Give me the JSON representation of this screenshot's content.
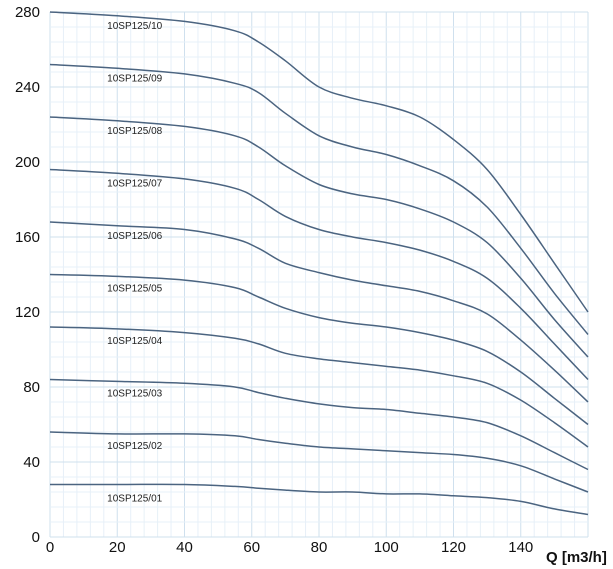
{
  "chart_data": {
    "type": "line",
    "title": "",
    "xlabel": "Q  [m3/h]",
    "ylabel": "",
    "xlim": [
      0,
      160
    ],
    "ylim": [
      0,
      280
    ],
    "grid": true,
    "x_ticks": [
      0,
      20,
      40,
      60,
      80,
      100,
      120,
      140
    ],
    "x_tick_labels": [
      "0",
      "20",
      "40",
      "60",
      "80",
      "100",
      "120",
      "140"
    ],
    "y_ticks": [
      0,
      40,
      80,
      120,
      160,
      200,
      240,
      280
    ],
    "y_tick_labels": [
      "0",
      "40",
      "80",
      "120",
      "160",
      "200",
      "240",
      "280"
    ],
    "x": [
      0,
      20,
      40,
      55,
      62,
      70,
      80,
      90,
      100,
      110,
      120,
      130,
      140,
      150,
      160
    ],
    "series": [
      {
        "name": "10SP125/10",
        "values": [
          280,
          278,
          275,
          270,
          264,
          254,
          240,
          234,
          230,
          224,
          212,
          196,
          172,
          146,
          120
        ]
      },
      {
        "name": "10SP125/09",
        "values": [
          252,
          250,
          247,
          242,
          237,
          226,
          214,
          208,
          204,
          198,
          190,
          176,
          154,
          130,
          108
        ]
      },
      {
        "name": "10SP125/08",
        "values": [
          224,
          222,
          219,
          214,
          208,
          198,
          188,
          183,
          180,
          175,
          168,
          157,
          138,
          116,
          96
        ]
      },
      {
        "name": "10SP125/07",
        "values": [
          196,
          194,
          191,
          186,
          180,
          171,
          164,
          160,
          157,
          153,
          147,
          138,
          122,
          103,
          84
        ]
      },
      {
        "name": "10SP125/06",
        "values": [
          168,
          166,
          164,
          159,
          154,
          146,
          141,
          137,
          134,
          131,
          126,
          119,
          105,
          89,
          72
        ]
      },
      {
        "name": "10SP125/05",
        "values": [
          140,
          139,
          137,
          133,
          128,
          122,
          117,
          114,
          112,
          109,
          105,
          99,
          88,
          74,
          60
        ]
      },
      {
        "name": "10SP125/04",
        "values": [
          112,
          111,
          109,
          106,
          103,
          98,
          95,
          93,
          91,
          89,
          86,
          82,
          73,
          61,
          48
        ]
      },
      {
        "name": "10SP125/03",
        "values": [
          84,
          83,
          82,
          80,
          77,
          74,
          71,
          69,
          68,
          66,
          64,
          61,
          54,
          45,
          36
        ]
      },
      {
        "name": "10SP125/02",
        "values": [
          56,
          55,
          55,
          54,
          52,
          50,
          48,
          47,
          46,
          45,
          44,
          42,
          38,
          31,
          24
        ]
      },
      {
        "name": "10SP125/01",
        "values": [
          28,
          28,
          28,
          27,
          26,
          25,
          24,
          24,
          23,
          23,
          22,
          21,
          19,
          15,
          12
        ]
      }
    ]
  }
}
